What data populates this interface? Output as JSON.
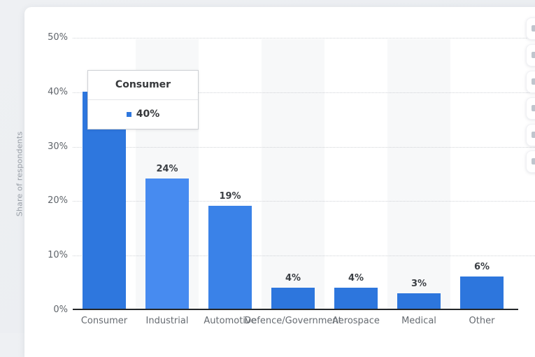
{
  "chart_data": {
    "type": "bar",
    "categories": [
      "Consumer",
      "Industrial",
      "Automotive",
      "Defence/Government",
      "Aerospace",
      "Medical",
      "Other"
    ],
    "values": [
      40,
      24,
      19,
      4,
      4,
      3,
      6
    ],
    "value_labels": [
      "40%",
      "24%",
      "19%",
      "4%",
      "4%",
      "3%",
      "6%"
    ],
    "title": "",
    "xlabel": "",
    "ylabel": "Share of respondents",
    "ylim": [
      0,
      50
    ],
    "ytick_labels": [
      "0%",
      "10%",
      "20%",
      "30%",
      "40%",
      "50%"
    ],
    "grid": "horizontal dotted",
    "legend": "none",
    "bar_colors": [
      "#2e77de",
      "#478bf0",
      "#3a82e8",
      "#2d76dd",
      "#2d76dd",
      "#2d76dd",
      "#2d76dd"
    ],
    "band_fill": "#f7f8f9",
    "banded_categories": [
      "Industrial",
      "Defence/Government",
      "Medical"
    ],
    "grid_color": "#d0d3d7",
    "axis_color": "#232629"
  },
  "tooltip": {
    "title": "Consumer",
    "value": "40%",
    "marker_color": "#2e77de"
  },
  "toolbar": {
    "buttons": [
      {
        "icon": "toolbar-icon"
      },
      {
        "icon": "toolbar-icon"
      },
      {
        "icon": "toolbar-icon"
      },
      {
        "icon": "toolbar-icon"
      },
      {
        "icon": "toolbar-icon"
      },
      {
        "icon": "toolbar-icon"
      }
    ]
  }
}
